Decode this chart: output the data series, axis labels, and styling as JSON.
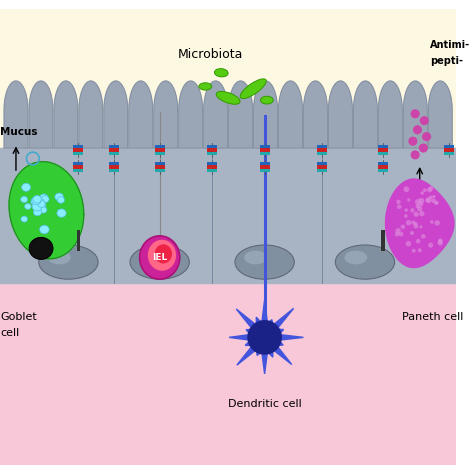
{
  "bg_top_color": "#fdf8e1",
  "bg_bottom_color": "#f8c8d8",
  "mucus_layer_color": "#c5dff0",
  "epithelium_color": "#a8b4c4",
  "epithelium_dark": "#8890a0",
  "villi_color": "#9aa6b6",
  "villi_dark": "#7a8696",
  "title_microbiota": "Microbiota",
  "title_mucus": "Mucus",
  "title_goblet": "Goblet\ncell",
  "title_iel": "IEL",
  "title_dendritic": "Dendritic cell",
  "title_paneth": "Paneth cell",
  "goblet_green": "#33cc33",
  "goblet_cyan": "#88eeff",
  "goblet_nucleus": "#222222",
  "iel_magenta": "#cc2299",
  "iel_red_light": "#ff6688",
  "iel_red_dark": "#ee2244",
  "dendritic_blue": "#4455dd",
  "dendritic_dark": "#1a2288",
  "paneth_magenta": "#cc44cc",
  "paneth_pink_dots": "#dd88dd",
  "bacteria_green": "#55cc11",
  "bacteria_edge": "#339900",
  "peptide_dots": "#cc44aa",
  "tj_blue": "#2266bb",
  "tj_red": "#cc2222",
  "tj_teal": "#22aaaa",
  "nucleus_fill": "#8090a0",
  "nucleus_edge": "#606878",
  "figsize": [
    4.74,
    4.74
  ],
  "dpi": 100
}
